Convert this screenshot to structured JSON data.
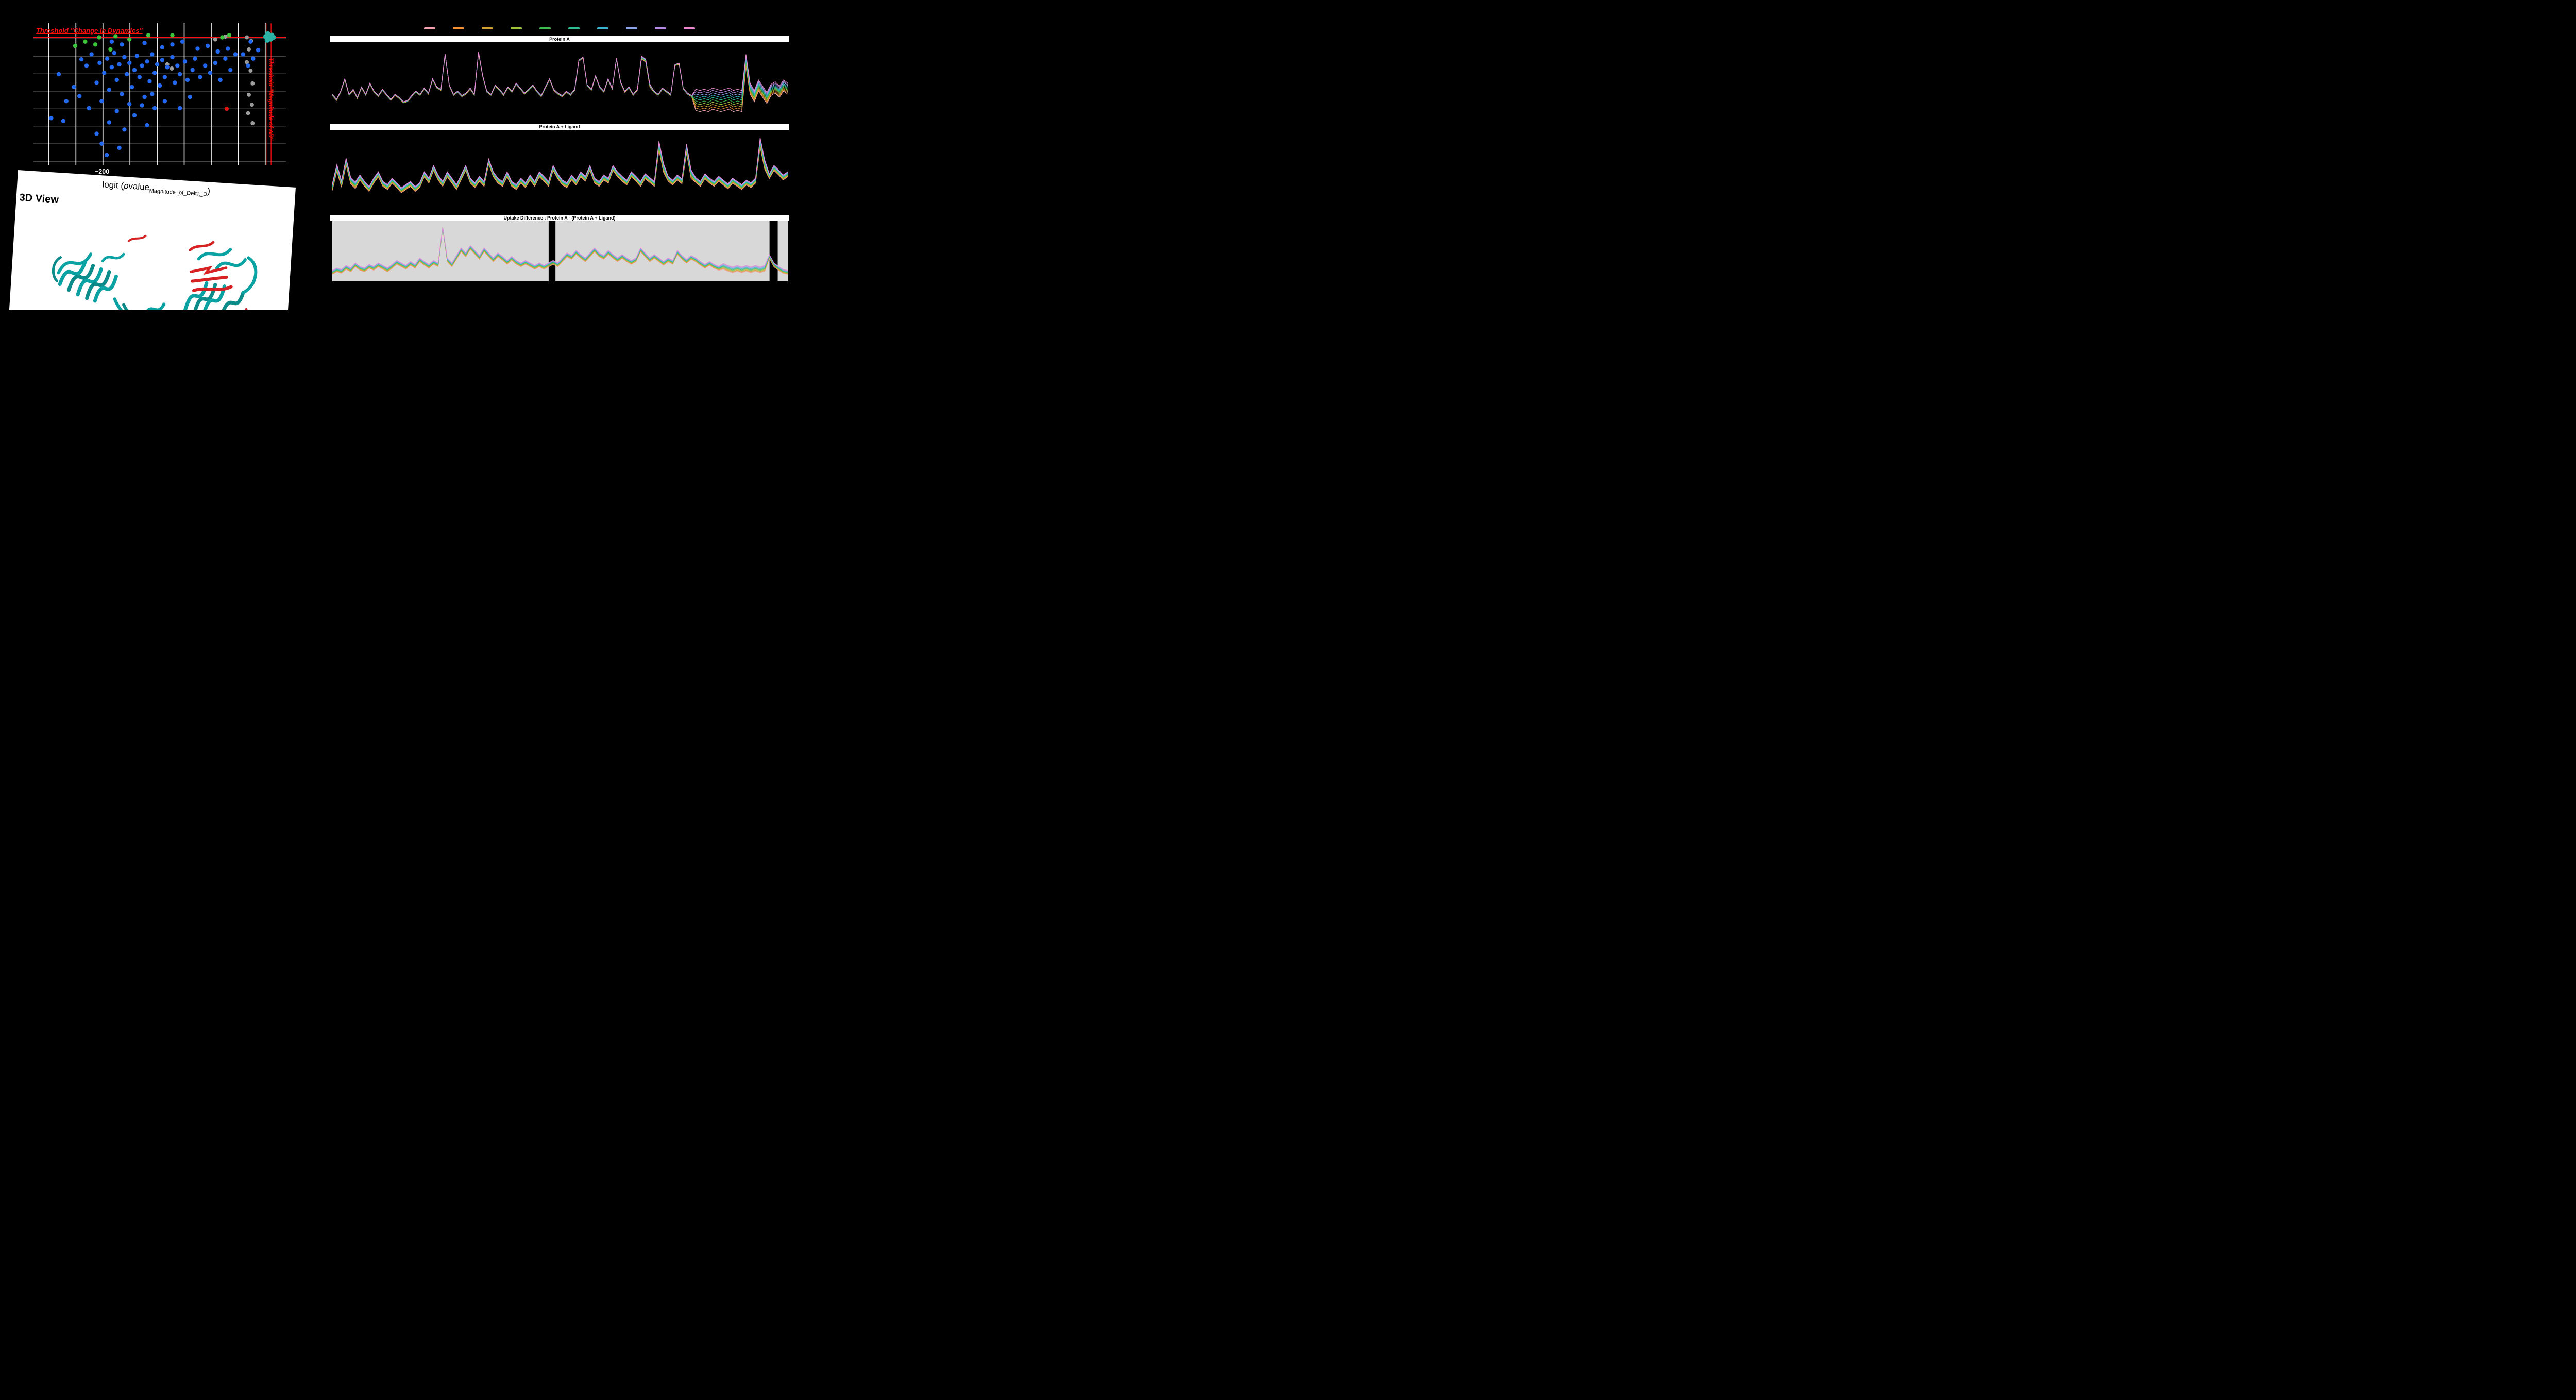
{
  "view3d": {
    "title": "3D View"
  },
  "legend": {
    "colors": [
      "#f2a3ad",
      "#f09136",
      "#cfa02e",
      "#9fc43c",
      "#3fbb50",
      "#2cbd92",
      "#3ab5cf",
      "#8ba6e8",
      "#b78ae6",
      "#e98ad0"
    ]
  },
  "chart_data": [
    {
      "type": "scatter",
      "title": "",
      "x_label": "logit (pvalue_Magnitude_of_Delta_D)",
      "x_label_parts": {
        "prefix": "logit (",
        "p": "p",
        "rest": "value",
        "subscript": "Magnitude_of_Delta_D",
        "suffix": ")"
      },
      "x_tick_labels": [
        "−200"
      ],
      "annotations": {
        "change_in_dynamics": "Threshold \"Change in Dynamics\"",
        "magnitude": "Threshold \"Magnitude of ΔD\""
      },
      "colors": {
        "gray": "#9c9c9c",
        "blue": "#2368f0",
        "green": "#3dc43d",
        "teal": "#2bb3a6",
        "red": "#e11414",
        "threshold": "#ff1010",
        "grid": "#ffffff",
        "background": "#000000"
      },
      "grid": {
        "vertical": [
          0.061,
          0.168,
          0.275,
          0.382,
          0.49,
          0.597,
          0.704,
          0.811,
          0.918
        ],
        "horizontal": [
          0.105,
          0.233,
          0.357,
          0.48,
          0.604,
          0.727,
          0.851,
          0.975
        ]
      },
      "thresholds": {
        "horizontal_y": 0.1,
        "vertical_x": [
          0.925,
          0.941
        ]
      },
      "points": {
        "gray": [
          [
            0.53,
            0.29
          ],
          [
            0.548,
            0.32
          ],
          [
            0.845,
            0.1
          ],
          [
            0.862,
            0.125
          ],
          [
            0.853,
            0.185
          ],
          [
            0.845,
            0.275
          ],
          [
            0.86,
            0.335
          ],
          [
            0.868,
            0.425
          ],
          [
            0.853,
            0.505
          ],
          [
            0.865,
            0.575
          ],
          [
            0.85,
            0.635
          ],
          [
            0.868,
            0.705
          ],
          [
            0.76,
            0.095
          ],
          [
            0.72,
            0.115
          ]
        ],
        "blue": [
          [
            0.07,
            0.67
          ],
          [
            0.118,
            0.69
          ],
          [
            0.1,
            0.36
          ],
          [
            0.19,
            0.255
          ],
          [
            0.182,
            0.515
          ],
          [
            0.21,
            0.3
          ],
          [
            0.23,
            0.22
          ],
          [
            0.25,
            0.42
          ],
          [
            0.262,
            0.28
          ],
          [
            0.27,
            0.55
          ],
          [
            0.28,
            0.35
          ],
          [
            0.292,
            0.25
          ],
          [
            0.3,
            0.47
          ],
          [
            0.31,
            0.31
          ],
          [
            0.32,
            0.21
          ],
          [
            0.33,
            0.4
          ],
          [
            0.34,
            0.29
          ],
          [
            0.35,
            0.5
          ],
          [
            0.36,
            0.24
          ],
          [
            0.37,
            0.36
          ],
          [
            0.38,
            0.28
          ],
          [
            0.39,
            0.45
          ],
          [
            0.4,
            0.33
          ],
          [
            0.41,
            0.23
          ],
          [
            0.42,
            0.38
          ],
          [
            0.43,
            0.3
          ],
          [
            0.44,
            0.52
          ],
          [
            0.45,
            0.27
          ],
          [
            0.46,
            0.41
          ],
          [
            0.47,
            0.22
          ],
          [
            0.48,
            0.35
          ],
          [
            0.49,
            0.29
          ],
          [
            0.5,
            0.44
          ],
          [
            0.51,
            0.26
          ],
          [
            0.52,
            0.38
          ],
          [
            0.53,
            0.31
          ],
          [
            0.55,
            0.24
          ],
          [
            0.56,
            0.42
          ],
          [
            0.57,
            0.3
          ],
          [
            0.58,
            0.36
          ],
          [
            0.6,
            0.27
          ],
          [
            0.61,
            0.4
          ],
          [
            0.63,
            0.33
          ],
          [
            0.64,
            0.25
          ],
          [
            0.66,
            0.38
          ],
          [
            0.68,
            0.3
          ],
          [
            0.7,
            0.35
          ],
          [
            0.72,
            0.28
          ],
          [
            0.74,
            0.4
          ],
          [
            0.76,
            0.25
          ],
          [
            0.78,
            0.33
          ],
          [
            0.8,
            0.22
          ],
          [
            0.25,
            0.78
          ],
          [
            0.27,
            0.85
          ],
          [
            0.3,
            0.7
          ],
          [
            0.33,
            0.62
          ],
          [
            0.36,
            0.75
          ],
          [
            0.4,
            0.65
          ],
          [
            0.43,
            0.58
          ],
          [
            0.34,
            0.88
          ],
          [
            0.29,
            0.93
          ],
          [
            0.45,
            0.72
          ],
          [
            0.48,
            0.6
          ],
          [
            0.38,
            0.57
          ],
          [
            0.22,
            0.6
          ],
          [
            0.16,
            0.45
          ],
          [
            0.13,
            0.55
          ],
          [
            0.85,
            0.3
          ],
          [
            0.83,
            0.22
          ],
          [
            0.87,
            0.25
          ],
          [
            0.62,
            0.52
          ],
          [
            0.58,
            0.6
          ],
          [
            0.52,
            0.55
          ],
          [
            0.47,
            0.5
          ],
          [
            0.77,
            0.18
          ],
          [
            0.73,
            0.2
          ],
          [
            0.69,
            0.16
          ],
          [
            0.55,
            0.15
          ],
          [
            0.44,
            0.14
          ],
          [
            0.51,
            0.17
          ],
          [
            0.59,
            0.13
          ],
          [
            0.65,
            0.18
          ],
          [
            0.35,
            0.15
          ],
          [
            0.31,
            0.13
          ],
          [
            0.86,
            0.13
          ],
          [
            0.89,
            0.19
          ]
        ],
        "green": [
          [
            0.165,
            0.16
          ],
          [
            0.205,
            0.13
          ],
          [
            0.245,
            0.15
          ],
          [
            0.26,
            0.1
          ],
          [
            0.305,
            0.185
          ],
          [
            0.325,
            0.092
          ],
          [
            0.38,
            0.115
          ],
          [
            0.455,
            0.085
          ],
          [
            0.55,
            0.085
          ],
          [
            0.748,
            0.1
          ],
          [
            0.775,
            0.085
          ]
        ],
        "teal": [
          [
            0.92,
            0.095
          ],
          [
            0.928,
            0.075
          ],
          [
            0.936,
            0.105
          ],
          [
            0.944,
            0.085
          ],
          [
            0.95,
            0.1
          ],
          [
            0.926,
            0.12
          ],
          [
            0.94,
            0.112
          ]
        ],
        "red": [
          [
            0.765,
            0.604
          ]
        ]
      }
    },
    {
      "type": "line",
      "title": "Protein A",
      "stroke_width": 1.1,
      "opacity": 1,
      "spread_scale": 5.5,
      "spread": {
        "default": 0.05,
        "ranges": [
          [
            74,
            76,
            0.12
          ],
          [
            87,
            98,
            0.85
          ],
          [
            99,
            99,
            0.5
          ],
          [
            100,
            109,
            0.45
          ]
        ]
      },
      "base": [
        0.3,
        0.22,
        0.35,
        0.55,
        0.3,
        0.38,
        0.25,
        0.42,
        0.3,
        0.48,
        0.35,
        0.28,
        0.38,
        0.3,
        0.22,
        0.3,
        0.25,
        0.18,
        0.2,
        0.28,
        0.35,
        0.3,
        0.4,
        0.32,
        0.55,
        0.42,
        0.38,
        0.95,
        0.45,
        0.3,
        0.35,
        0.28,
        0.32,
        0.4,
        0.3,
        0.98,
        0.6,
        0.35,
        0.3,
        0.45,
        0.38,
        0.3,
        0.42,
        0.35,
        0.48,
        0.4,
        0.32,
        0.38,
        0.45,
        0.35,
        0.28,
        0.42,
        0.55,
        0.38,
        0.32,
        0.28,
        0.35,
        0.3,
        0.38,
        0.85,
        0.9,
        0.45,
        0.38,
        0.6,
        0.42,
        0.35,
        0.55,
        0.4,
        0.88,
        0.5,
        0.35,
        0.42,
        0.3,
        0.38,
        0.9,
        0.85,
        0.45,
        0.35,
        0.3,
        0.4,
        0.35,
        0.3,
        0.78,
        0.8,
        0.4,
        0.32,
        0.28,
        0.22,
        0.2,
        0.22,
        0.2,
        0.24,
        0.22,
        0.2,
        0.22,
        0.24,
        0.2,
        0.22,
        0.2,
        0.85,
        0.4,
        0.28,
        0.45,
        0.35,
        0.25,
        0.38,
        0.42,
        0.35,
        0.45,
        0.4
      ]
    },
    {
      "type": "line",
      "title": "Protein A + Ligand",
      "stroke_width": 1.1,
      "opacity": 1,
      "spread_scale": 2.4,
      "spread": {
        "default": 0.45,
        "ranges": [
          [
            0,
            5,
            0.6
          ],
          [
            71,
            72,
            0.8
          ],
          [
            77,
            78,
            0.8
          ],
          [
            93,
            94,
            0.85
          ]
        ]
      },
      "base": [
        0.25,
        0.55,
        0.3,
        0.65,
        0.35,
        0.28,
        0.4,
        0.3,
        0.22,
        0.35,
        0.45,
        0.3,
        0.25,
        0.35,
        0.28,
        0.2,
        0.25,
        0.3,
        0.22,
        0.28,
        0.45,
        0.35,
        0.55,
        0.4,
        0.3,
        0.45,
        0.35,
        0.25,
        0.4,
        0.55,
        0.35,
        0.28,
        0.38,
        0.3,
        0.65,
        0.45,
        0.35,
        0.3,
        0.45,
        0.3,
        0.25,
        0.35,
        0.28,
        0.4,
        0.3,
        0.45,
        0.38,
        0.3,
        0.55,
        0.42,
        0.32,
        0.28,
        0.4,
        0.32,
        0.45,
        0.38,
        0.55,
        0.35,
        0.3,
        0.4,
        0.35,
        0.55,
        0.45,
        0.38,
        0.32,
        0.45,
        0.38,
        0.3,
        0.42,
        0.36,
        0.3,
        0.9,
        0.55,
        0.38,
        0.32,
        0.4,
        0.34,
        0.85,
        0.45,
        0.36,
        0.3,
        0.42,
        0.35,
        0.3,
        0.38,
        0.32,
        0.26,
        0.35,
        0.3,
        0.25,
        0.32,
        0.28,
        0.35,
        0.95,
        0.6,
        0.42,
        0.55,
        0.48,
        0.4,
        0.45
      ]
    },
    {
      "type": "line",
      "title": "Uptake Difference : Protein A - (Protein A + Ligand)",
      "stroke_width": 1.0,
      "opacity": 0.9,
      "spread_scale": 2.2,
      "spread": {
        "default": 0.5,
        "ranges": [
          [
            24,
            24,
            0.2
          ],
          [
            85,
            94,
            0.75
          ]
        ]
      },
      "bg_color": "#d8d8d8",
      "bg_segments": [
        [
          0,
          0.475
        ],
        [
          0.49,
          0.96
        ],
        [
          0.978,
          1.0
        ]
      ],
      "base": [
        0.1,
        0.15,
        0.12,
        0.2,
        0.15,
        0.25,
        0.18,
        0.15,
        0.22,
        0.18,
        0.25,
        0.2,
        0.15,
        0.22,
        0.3,
        0.25,
        0.2,
        0.28,
        0.22,
        0.35,
        0.28,
        0.22,
        0.3,
        0.25,
        1.0,
        0.35,
        0.25,
        0.4,
        0.55,
        0.45,
        0.6,
        0.5,
        0.4,
        0.55,
        0.45,
        0.35,
        0.45,
        0.38,
        0.3,
        0.38,
        0.3,
        0.25,
        0.3,
        0.25,
        0.2,
        0.25,
        0.2,
        0.25,
        0.3,
        0.25,
        0.35,
        0.45,
        0.4,
        0.5,
        0.42,
        0.35,
        0.45,
        0.55,
        0.45,
        0.4,
        0.5,
        0.42,
        0.35,
        0.42,
        0.35,
        0.3,
        0.35,
        0.55,
        0.45,
        0.35,
        0.42,
        0.35,
        0.28,
        0.35,
        0.3,
        0.5,
        0.4,
        0.32,
        0.4,
        0.35,
        0.28,
        0.22,
        0.28,
        0.22,
        0.18,
        0.22,
        0.18,
        0.15,
        0.18,
        0.15,
        0.18,
        0.15,
        0.18,
        0.15,
        0.18,
        0.42,
        0.25,
        0.18,
        0.12,
        0.1
      ]
    }
  ]
}
